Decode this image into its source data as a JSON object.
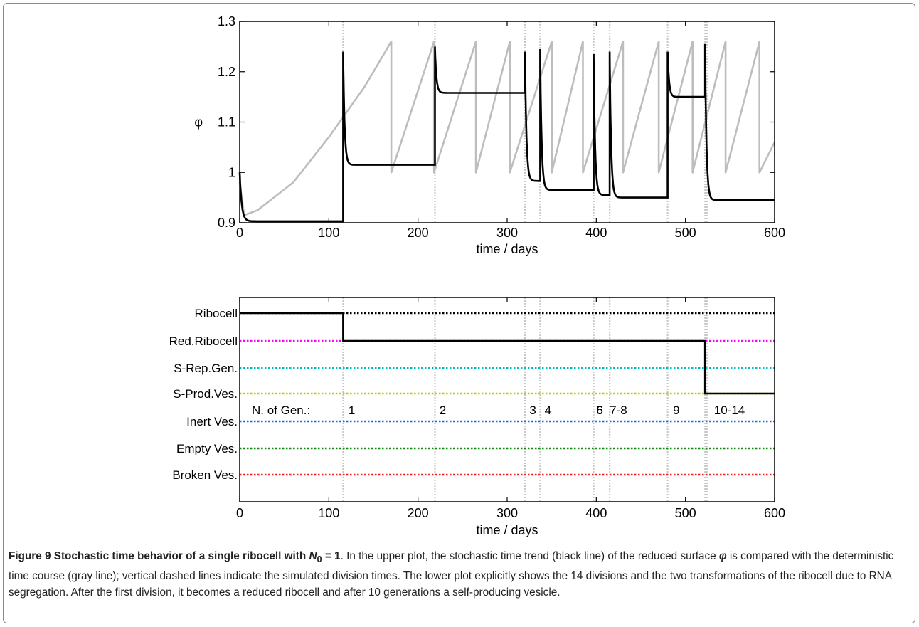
{
  "chart_data": [
    {
      "type": "line",
      "panel": "upper",
      "xlabel": "time / days",
      "ylabel": "φ",
      "xlim": [
        0,
        600
      ],
      "ylim": [
        0.9,
        1.3
      ],
      "x_ticks": [
        "0",
        "100",
        "200",
        "300",
        "400",
        "500",
        "600"
      ],
      "y_ticks": [
        "0.9",
        "1",
        "1.1",
        "1.2",
        "1.3"
      ],
      "grid": false,
      "colors": {
        "stochastic": "#000000",
        "deterministic": "#bdbdbd",
        "division_lines": "#c8c8c8"
      },
      "series": [
        {
          "line": "black",
          "segments": [
            {
              "start": 0,
              "end": 116,
              "peak": 1.0,
              "plateau": 0.903
            },
            {
              "start": 116,
              "end": 219,
              "peak": 1.24,
              "plateau": 1.015
            },
            {
              "start": 219,
              "end": 320,
              "peak": 1.25,
              "plateau": 1.158
            },
            {
              "start": 320,
              "end": 337,
              "peak": 1.24,
              "plateau": 0.983
            },
            {
              "start": 337,
              "end": 397,
              "peak": 1.245,
              "plateau": 0.965
            },
            {
              "start": 397,
              "end": 415,
              "peak": 1.235,
              "plateau": 0.955
            },
            {
              "start": 415,
              "end": 480,
              "peak": 1.24,
              "plateau": 0.95
            },
            {
              "start": 480,
              "end": 522,
              "peak": 1.24,
              "plateau": 1.15
            },
            {
              "start": 522,
              "end": 600,
              "peak": 1.255,
              "plateau": 0.945
            }
          ]
        },
        {
          "line": "gray",
          "x": [
            0,
            5,
            20,
            60,
            100,
            140,
            170,
            170,
            218,
            218,
            265,
            265,
            303,
            303,
            350,
            350,
            385,
            385,
            430,
            430,
            470,
            470,
            508,
            508,
            545,
            545,
            583,
            583,
            600
          ],
          "y": [
            0.98,
            0.915,
            0.925,
            0.98,
            1.07,
            1.17,
            1.26,
            1.0,
            1.26,
            1.0,
            1.26,
            1.0,
            1.26,
            1.0,
            1.26,
            1.0,
            1.26,
            1.0,
            1.26,
            1.0,
            1.26,
            1.0,
            1.26,
            1.0,
            1.26,
            1.0,
            1.26,
            1.0,
            1.06
          ]
        }
      ],
      "division_times": [
        116,
        219,
        320,
        337,
        397,
        415,
        480,
        522,
        524
      ]
    },
    {
      "type": "line",
      "panel": "lower",
      "xlabel": "time / days",
      "xlim": [
        0,
        600
      ],
      "x_ticks": [
        "0",
        "100",
        "200",
        "300",
        "400",
        "500",
        "600"
      ],
      "categories": [
        "Ribocell",
        "Red.Ribocell",
        "S-Rep.Gen.",
        "S-Prod.Ves.",
        "Inert Ves.",
        "Empty Ves.",
        "Broken Ves."
      ],
      "category_colors": [
        "#000000",
        "#ff00ff",
        "#00c0c0",
        "#c8c800",
        "#1f6fd6",
        "#108a10",
        "#ff1e1e"
      ],
      "state_trajectory": [
        {
          "from": 0,
          "to": 116,
          "category": "Ribocell"
        },
        {
          "from": 116,
          "to": 522,
          "category": "Red.Ribocell"
        },
        {
          "from": 522,
          "to": 600,
          "category": "S-Prod.Ves."
        }
      ],
      "generation_title": "N. of Gen.:",
      "generation_labels": [
        {
          "x": 122,
          "text": "1"
        },
        {
          "x": 224,
          "text": "2"
        },
        {
          "x": 325,
          "text": "3"
        },
        {
          "x": 342,
          "text": "4"
        },
        {
          "x": 400,
          "text": "6"
        },
        {
          "x": 400,
          "text": "5"
        },
        {
          "x": 415,
          "text": "7-8"
        },
        {
          "x": 486,
          "text": "9"
        },
        {
          "x": 532,
          "text": "10-14"
        }
      ],
      "division_times": [
        116,
        219,
        320,
        337,
        397,
        415,
        480,
        522,
        524
      ]
    }
  ],
  "caption": {
    "label": "Figure 9",
    "title": "Stochastic time behavior of a single ribocell with",
    "title_math": "N",
    "title_math_sub": "0",
    "title_math_tail": " = 1",
    "text_a": ". In the upper plot, the stochastic time trend (black line) of the reduced surface ",
    "phi": "φ",
    "text_b": " is compared with the deterministic time course (gray line); vertical dashed lines indicate the simulated division times. The lower plot explicitly shows the 14 divisions and the two transformations of the ribocell due to RNA segregation. After the first division, it becomes a reduced ribocell and after 10 generations a self-producing vesicle."
  }
}
